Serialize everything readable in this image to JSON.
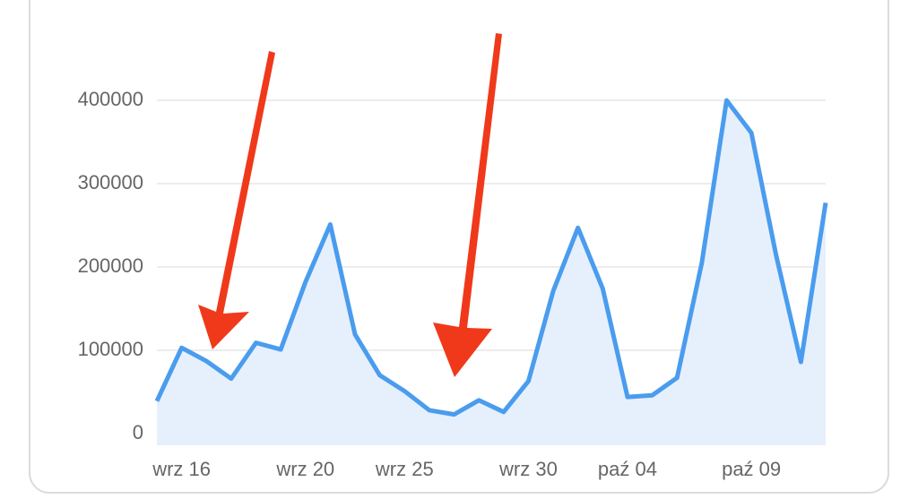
{
  "chart_data": {
    "type": "area",
    "categories": [
      null,
      "wrz 16",
      null,
      null,
      null,
      null,
      "wrz 20",
      null,
      null,
      null,
      "wrz 25",
      null,
      null,
      null,
      null,
      "wrz 30",
      null,
      null,
      null,
      "paź 04",
      null,
      null,
      null,
      null,
      "paź 09",
      null,
      null,
      null
    ],
    "values": [
      39000,
      103000,
      87000,
      66000,
      109000,
      101000,
      182000,
      251000,
      119000,
      70000,
      51000,
      28000,
      23000,
      40000,
      26000,
      63000,
      171000,
      247000,
      174000,
      44000,
      46000,
      67000,
      205000,
      400000,
      361000,
      214000,
      86000,
      277000
    ],
    "color": "#4a9cee",
    "ylim": [
      0,
      400000
    ],
    "yticks": [
      0,
      100000,
      200000,
      300000,
      400000
    ],
    "grid": true
  }
}
